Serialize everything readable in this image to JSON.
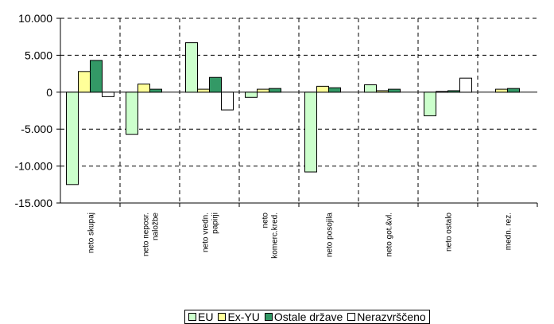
{
  "chart_data": {
    "type": "bar",
    "categories": [
      [
        "neto skupaj"
      ],
      [
        "neto neposr.",
        "naložbe"
      ],
      [
        "neto vredn.",
        "papirji"
      ],
      [
        "neto",
        "komerc.kred."
      ],
      [
        "neto posojila"
      ],
      [
        "neto got.&vl."
      ],
      [
        "neto ostalo"
      ],
      [
        "medn. rez."
      ]
    ],
    "series": [
      {
        "name": "EU",
        "color": "#ccffcc",
        "values": [
          -12500,
          -5700,
          6700,
          -700,
          -10800,
          1000,
          -3200,
          0
        ]
      },
      {
        "name": "Ex-YU",
        "color": "#ffff99",
        "values": [
          2800,
          1100,
          400,
          400,
          800,
          200,
          100,
          400
        ]
      },
      {
        "name": "Ostale države",
        "color": "#339966",
        "values": [
          4300,
          400,
          2000,
          500,
          600,
          400,
          200,
          500
        ]
      },
      {
        "name": "Nerazvrščeno",
        "color": "#ffffff",
        "values": [
          -600,
          0,
          -2400,
          0,
          0,
          0,
          1900,
          0
        ]
      }
    ],
    "y_ticks": [
      "10.000",
      "5.000",
      "0",
      "-5.000",
      "-10.000",
      "-15.000"
    ],
    "ylim": [
      -15000,
      10000
    ],
    "grid": "dashed",
    "legend_position": "bottom"
  }
}
